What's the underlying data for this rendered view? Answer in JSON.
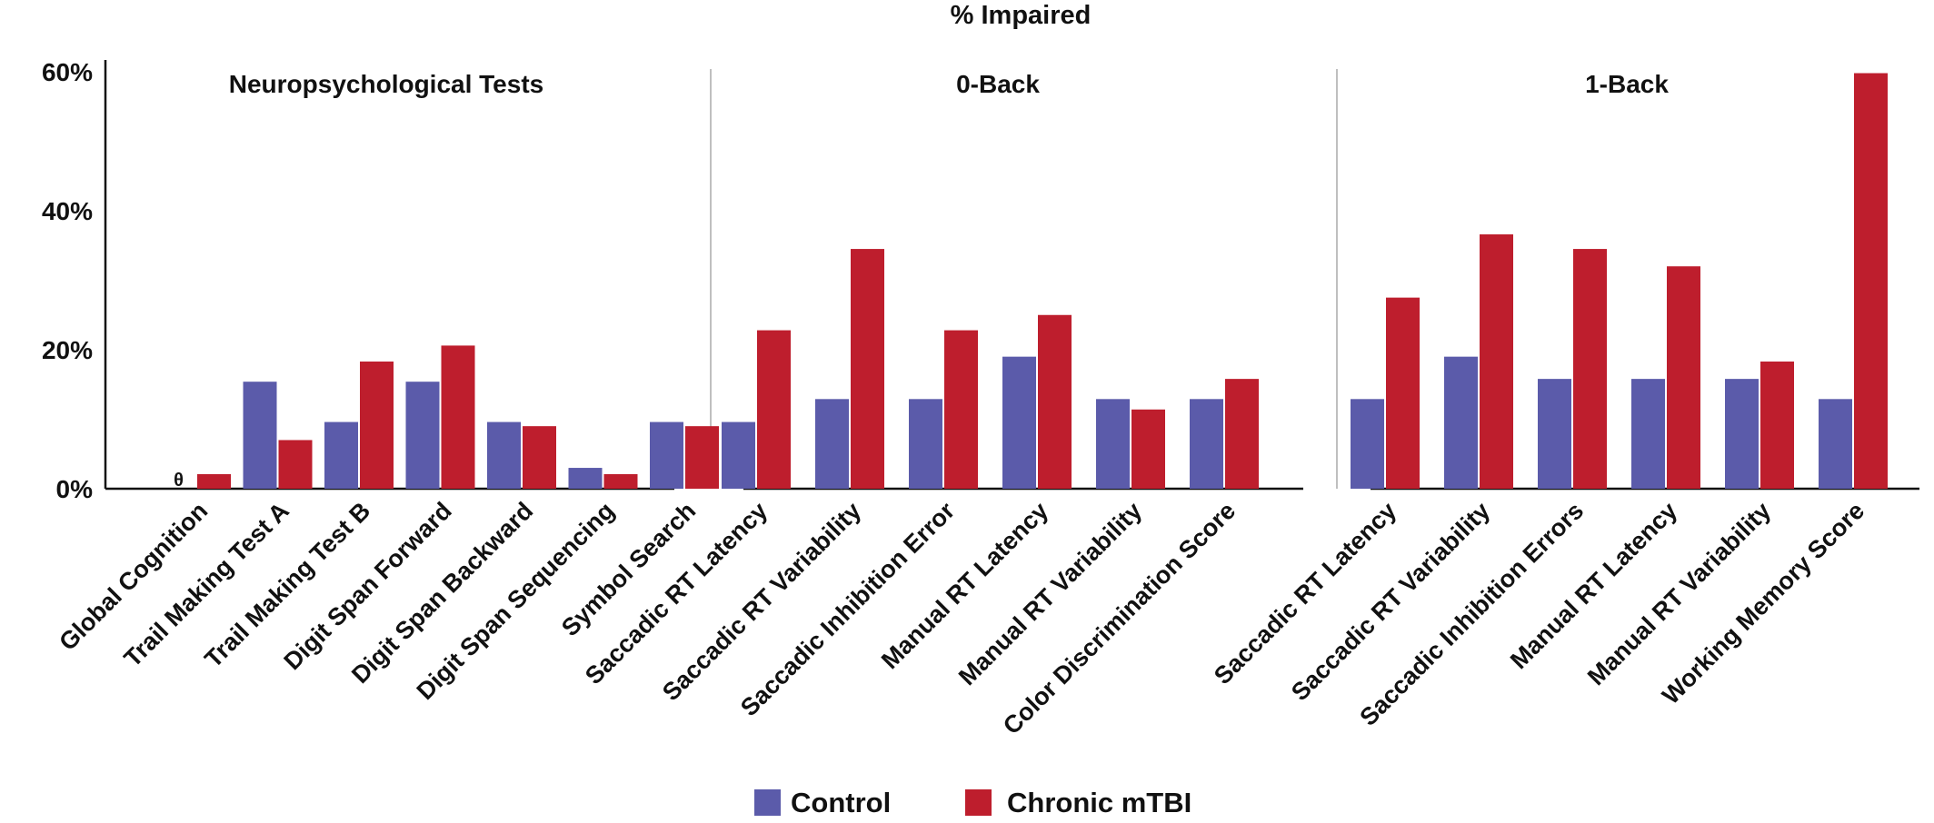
{
  "chart_data": {
    "type": "bar",
    "title": "% Impaired",
    "ylim": [
      0,
      60
    ],
    "yticks": [
      {
        "value": 0,
        "label": "0%"
      },
      {
        "value": 20,
        "label": "20%"
      },
      {
        "value": 40,
        "label": "40%"
      },
      {
        "value": 60,
        "label": "60%"
      }
    ],
    "grid": false,
    "legend_position": "bottom-center",
    "series": [
      {
        "name": "Control",
        "color": "#5B5BAA"
      },
      {
        "name": "Chronic mTBI",
        "color": "#BE1E2D"
      }
    ],
    "panels": [
      {
        "title": "Neuropsychological Tests",
        "categories": [
          "Global Cognition",
          "Trail Making Test A",
          "Trail Making Test B",
          "Digit Span Forward",
          "Digit Span Backward",
          "Digit Span Sequencing",
          "Symbol Search"
        ],
        "values": [
          [
            0,
            15.4,
            9.6,
            15.4,
            9.6,
            3.0,
            9.6
          ],
          [
            2.1,
            7.0,
            18.3,
            20.6,
            9.0,
            2.1,
            9.0
          ]
        ],
        "annotations": [
          {
            "category": "Global Cognition",
            "series": "Control",
            "text": "θ"
          }
        ]
      },
      {
        "title": "0-Back",
        "categories": [
          "Saccadic RT Latency",
          "Saccadic RT Variability",
          "Saccadic Inhibition Error",
          "Manual RT Latency",
          "Manual RT Variability",
          "Color Discrimination Score"
        ],
        "values": [
          [
            9.6,
            12.9,
            12.9,
            19.0,
            12.9,
            12.9
          ],
          [
            22.8,
            34.5,
            22.8,
            25.0,
            11.4,
            15.8
          ]
        ]
      },
      {
        "title": "1-Back",
        "categories": [
          "Saccadic RT Latency",
          "Saccadic RT Variability",
          "Saccadic Inhibition Errors",
          "Manual RT Latency",
          "Manual RT Variability",
          "Working Memory Score"
        ],
        "values": [
          [
            12.9,
            19.0,
            15.8,
            15.8,
            15.8,
            12.9
          ],
          [
            27.5,
            36.6,
            34.5,
            32.0,
            18.3,
            59.8
          ]
        ]
      }
    ]
  }
}
